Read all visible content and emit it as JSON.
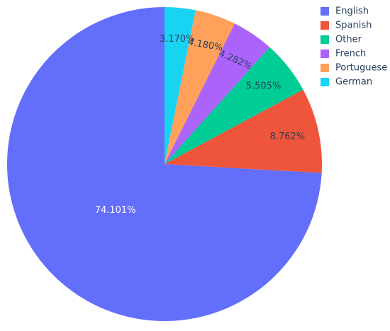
{
  "chart_data": {
    "type": "pie",
    "categories": [
      "English",
      "Spanish",
      "Other",
      "French",
      "Portuguese",
      "German"
    ],
    "values": [
      74.101,
      8.762,
      5.505,
      4.282,
      4.18,
      3.17
    ],
    "labels": [
      "74.101%",
      "8.762%",
      "5.505%",
      "4.282%",
      "4.180%",
      "3.170%"
    ],
    "colors": [
      "#636efa",
      "#EF553B",
      "#00cc96",
      "#ab63fa",
      "#FFA15A",
      "#19d3f3"
    ],
    "text_colors": [
      "#ffffff",
      "#2a3f5f",
      "#2a3f5f",
      "#2a3f5f",
      "#2a3f5f",
      "#2a3f5f"
    ],
    "legend_position": "top-right",
    "direction": "clockwise",
    "start_angle": "12 o'clock (first slice ends at 12 o'clock, counter-clockwise ordering visually)"
  }
}
